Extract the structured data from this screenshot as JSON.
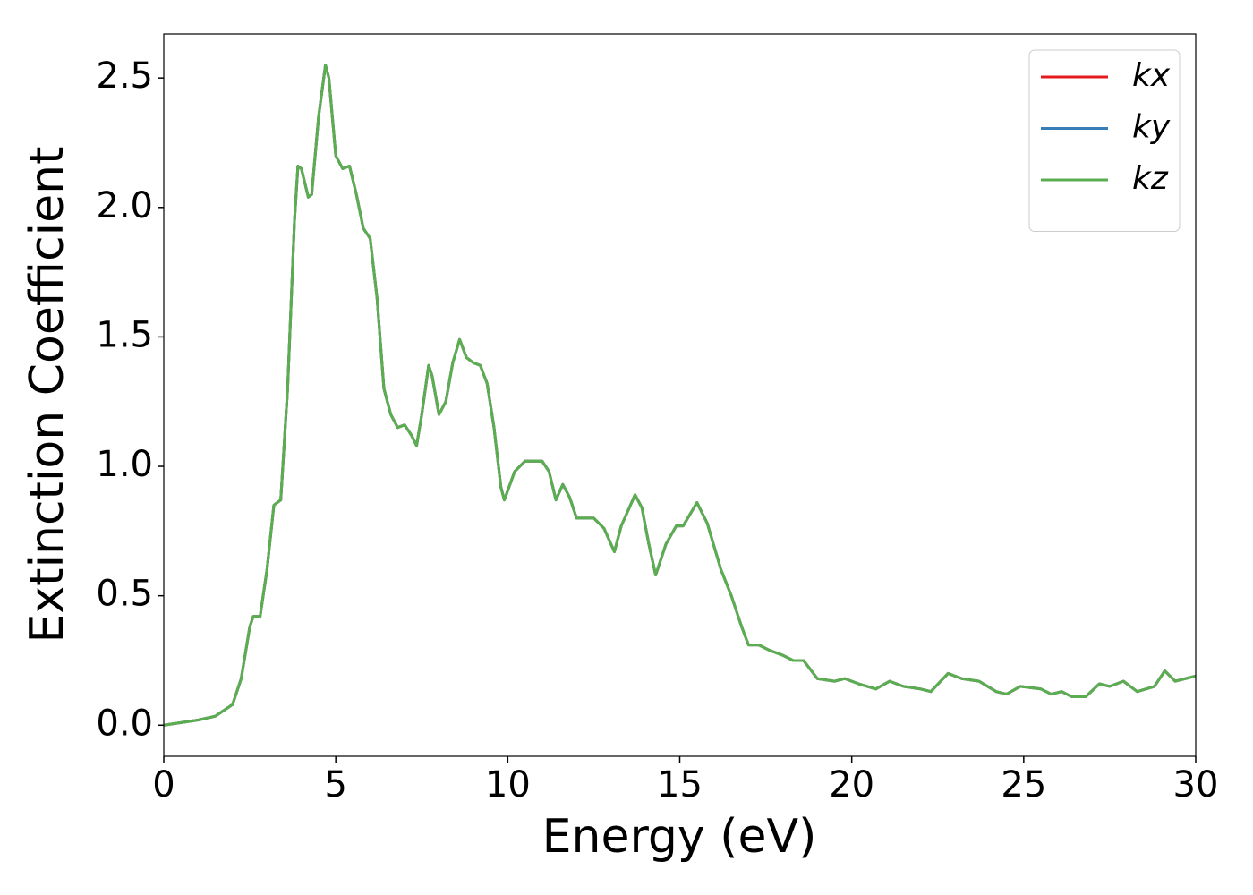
{
  "chart_data": {
    "type": "line",
    "xlabel": "Energy (eV)",
    "ylabel": "Extinction Coefficient",
    "x": [
      0,
      0.5,
      1,
      1.5,
      2,
      2.25,
      2.5,
      2.6,
      2.8,
      3.0,
      3.2,
      3.4,
      3.6,
      3.8,
      3.9,
      4.0,
      4.2,
      4.3,
      4.5,
      4.7,
      4.8,
      5.0,
      5.2,
      5.4,
      5.6,
      5.8,
      6.0,
      6.2,
      6.4,
      6.6,
      6.8,
      7.0,
      7.2,
      7.35,
      7.5,
      7.7,
      7.8,
      8.0,
      8.2,
      8.4,
      8.6,
      8.8,
      9.0,
      9.2,
      9.4,
      9.6,
      9.8,
      9.9,
      10.2,
      10.5,
      11.0,
      11.2,
      11.4,
      11.6,
      11.8,
      12.0,
      12.5,
      12.8,
      13.1,
      13.3,
      13.7,
      13.9,
      14.1,
      14.3,
      14.6,
      14.9,
      15.1,
      15.5,
      15.8,
      16.2,
      16.5,
      16.8,
      17.0,
      17.3,
      17.6,
      18.0,
      18.3,
      18.6,
      19.0,
      19.5,
      19.8,
      20.2,
      20.7,
      21.1,
      21.5,
      22.0,
      22.3,
      22.8,
      23.2,
      23.7,
      24.2,
      24.5,
      24.9,
      25.5,
      25.8,
      26.1,
      26.4,
      26.8,
      27.2,
      27.5,
      27.9,
      28.3,
      28.8,
      29.1,
      29.4,
      30.0
    ],
    "series": [
      {
        "name": "kx",
        "color": "#e41a1c",
        "values": [
          0,
          0.01,
          0.02,
          0.035,
          0.08,
          0.18,
          0.38,
          0.42,
          0.42,
          0.6,
          0.85,
          0.87,
          1.3,
          1.95,
          2.16,
          2.15,
          2.04,
          2.05,
          2.35,
          2.55,
          2.5,
          2.2,
          2.15,
          2.16,
          2.05,
          1.92,
          1.88,
          1.65,
          1.3,
          1.2,
          1.15,
          1.16,
          1.12,
          1.08,
          1.2,
          1.39,
          1.35,
          1.2,
          1.25,
          1.4,
          1.49,
          1.42,
          1.4,
          1.39,
          1.32,
          1.15,
          0.92,
          0.87,
          0.98,
          1.02,
          1.02,
          0.98,
          0.87,
          0.93,
          0.88,
          0.8,
          0.8,
          0.76,
          0.67,
          0.77,
          0.89,
          0.84,
          0.7,
          0.58,
          0.7,
          0.77,
          0.77,
          0.86,
          0.78,
          0.6,
          0.5,
          0.38,
          0.31,
          0.31,
          0.29,
          0.27,
          0.25,
          0.25,
          0.18,
          0.17,
          0.18,
          0.16,
          0.14,
          0.17,
          0.15,
          0.14,
          0.13,
          0.2,
          0.18,
          0.17,
          0.13,
          0.12,
          0.15,
          0.14,
          0.12,
          0.13,
          0.11,
          0.11,
          0.16,
          0.15,
          0.17,
          0.13,
          0.15,
          0.21,
          0.17,
          0.19
        ]
      },
      {
        "name": "ky",
        "color": "#377eb8",
        "values": [
          0,
          0.01,
          0.02,
          0.035,
          0.08,
          0.18,
          0.38,
          0.42,
          0.42,
          0.6,
          0.85,
          0.87,
          1.3,
          1.95,
          2.16,
          2.15,
          2.04,
          2.05,
          2.35,
          2.55,
          2.5,
          2.2,
          2.15,
          2.16,
          2.05,
          1.92,
          1.88,
          1.65,
          1.3,
          1.2,
          1.15,
          1.16,
          1.12,
          1.08,
          1.2,
          1.39,
          1.35,
          1.2,
          1.25,
          1.4,
          1.49,
          1.42,
          1.4,
          1.39,
          1.32,
          1.15,
          0.92,
          0.87,
          0.98,
          1.02,
          1.02,
          0.98,
          0.87,
          0.93,
          0.88,
          0.8,
          0.8,
          0.76,
          0.67,
          0.77,
          0.89,
          0.84,
          0.7,
          0.58,
          0.7,
          0.77,
          0.77,
          0.86,
          0.78,
          0.6,
          0.5,
          0.38,
          0.31,
          0.31,
          0.29,
          0.27,
          0.25,
          0.25,
          0.18,
          0.17,
          0.18,
          0.16,
          0.14,
          0.17,
          0.15,
          0.14,
          0.13,
          0.2,
          0.18,
          0.17,
          0.13,
          0.12,
          0.15,
          0.14,
          0.12,
          0.13,
          0.11,
          0.11,
          0.16,
          0.15,
          0.17,
          0.13,
          0.15,
          0.21,
          0.17,
          0.19
        ]
      },
      {
        "name": "kz",
        "color": "#5aae50",
        "values": [
          0,
          0.01,
          0.02,
          0.035,
          0.08,
          0.18,
          0.38,
          0.42,
          0.42,
          0.6,
          0.85,
          0.87,
          1.3,
          1.95,
          2.16,
          2.15,
          2.04,
          2.05,
          2.35,
          2.55,
          2.5,
          2.2,
          2.15,
          2.16,
          2.05,
          1.92,
          1.88,
          1.65,
          1.3,
          1.2,
          1.15,
          1.16,
          1.12,
          1.08,
          1.2,
          1.39,
          1.35,
          1.2,
          1.25,
          1.4,
          1.49,
          1.42,
          1.4,
          1.39,
          1.32,
          1.15,
          0.92,
          0.87,
          0.98,
          1.02,
          1.02,
          0.98,
          0.87,
          0.93,
          0.88,
          0.8,
          0.8,
          0.76,
          0.67,
          0.77,
          0.89,
          0.84,
          0.7,
          0.58,
          0.7,
          0.77,
          0.77,
          0.86,
          0.78,
          0.6,
          0.5,
          0.38,
          0.31,
          0.31,
          0.29,
          0.27,
          0.25,
          0.25,
          0.18,
          0.17,
          0.18,
          0.16,
          0.14,
          0.17,
          0.15,
          0.14,
          0.13,
          0.2,
          0.18,
          0.17,
          0.13,
          0.12,
          0.15,
          0.14,
          0.12,
          0.13,
          0.11,
          0.11,
          0.16,
          0.15,
          0.17,
          0.13,
          0.15,
          0.21,
          0.17,
          0.19
        ]
      }
    ],
    "xlim": [
      0,
      30
    ],
    "xticks": [
      0,
      5,
      10,
      15,
      20,
      25,
      30
    ],
    "ylim": [
      -0.12,
      2.67
    ],
    "yticks": [
      {
        "value": 0,
        "label": "0.0"
      },
      0.5,
      {
        "value": 1,
        "label": "1.0"
      },
      1.5,
      {
        "value": 2,
        "label": "2.0"
      },
      2.5
    ],
    "grid": false,
    "legend": "upper right"
  }
}
